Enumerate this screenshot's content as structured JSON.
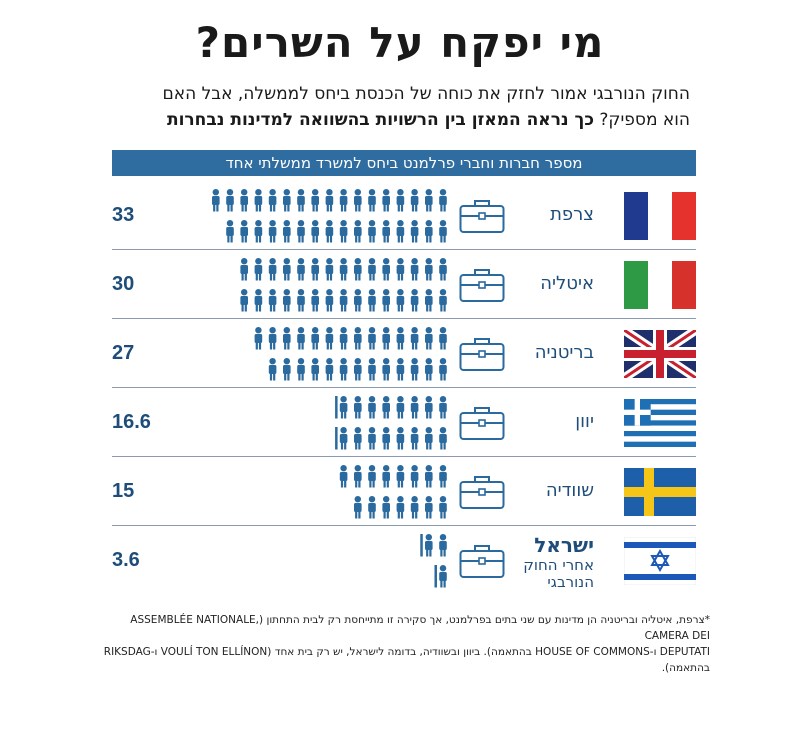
{
  "title": "מי יפקח על השרים?",
  "subtitle_line1": "החוק הנורבגי אמור לחזק את כוחה של הכנסת ביחס לממשלה, אבל האם",
  "subtitle_line2_plain": "הוא מספיק? ",
  "subtitle_line2_bold": "כך נראה המאזן בין הרשויות בהשוואה למדינות נבחרות",
  "header_bar": "מספר חברות וחברי פרלמנט ביחס למשרד ממשלתי אחד",
  "footnote_line1": "*צרפת, איטליה ובריטניה הן מדינות עם שני בתים בפרלמנט, אך סקירה זו מתייחסת רק לבית התחתון (ASSEMBLÉE NATIONALE, CAMERA DEI",
  "footnote_line2": "DEPUTATI ו-HOUSE OF COMMONS בהתאמה). ביוון ובשוודיה, בדומה לישראל, יש רק בית אחד (VOULÍ TON ELLÍNON ו-RIKSDAG בהתאמה).",
  "colors": {
    "accent": "#2f6da1",
    "icon": "#2a6a9e",
    "value_text": "#1e4d7a"
  },
  "chart_data": {
    "type": "bar",
    "title": "מספר חברות וחברי פרלמנט ביחס למשרד ממשלתי אחד",
    "categories": [
      "צרפת",
      "איטליה",
      "בריטניה",
      "יוון",
      "שוודיה",
      "ישראל"
    ],
    "values": [
      33,
      30,
      27,
      16.6,
      15,
      3.6
    ],
    "value_labels": [
      "33",
      "30",
      "27",
      "16.6",
      "15",
      "3.6"
    ],
    "israel_label": {
      "main": "ישראל",
      "sub1": "אחרי החוק",
      "sub2": "הנורבגי"
    },
    "flags": [
      "france",
      "italy",
      "uk",
      "greece",
      "sweden",
      "israel"
    ],
    "icon_unit": "person-icon",
    "ministry_icon": "briefcase-icon"
  }
}
